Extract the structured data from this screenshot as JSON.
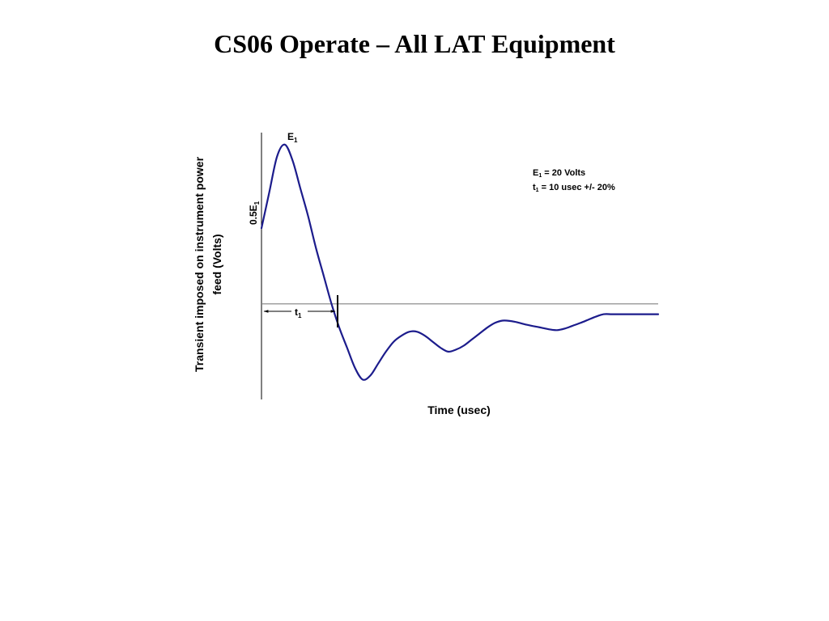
{
  "slide": {
    "title": "CS06 Operate – All LAT Equipment"
  },
  "chart_data": {
    "type": "line",
    "title": "",
    "xlabel": "Time (usec)",
    "ylabel_line1": "Transient imposed on instrument power",
    "ylabel_line2": "feed (Volts)",
    "grid": false,
    "axis_x_visible": false,
    "colors": {
      "trace": "#1c1c8c",
      "axis": "#000000",
      "baseline": "#808080"
    },
    "markers": {
      "peak": {
        "main": "E",
        "sub": "1"
      },
      "half_peak": {
        "main": "0.5E",
        "sub": "1"
      },
      "duration": {
        "main": "t",
        "sub": "1"
      }
    },
    "legend": {
      "placement": "top-right",
      "line1": {
        "sym": "E",
        "sub": "1",
        "text": " = 20 Volts"
      },
      "line2": {
        "sym": "t",
        "sub": "1",
        "text": " = 10 usec +/- 20%"
      }
    },
    "xlim": [
      0,
      51
    ],
    "ylim": [
      -2.4,
      4.3
    ],
    "series": [
      {
        "x": [
          0,
          1,
          2,
          3,
          4,
          5,
          6,
          7,
          8,
          9,
          10,
          11,
          12,
          13,
          14,
          15,
          16,
          17,
          18,
          19,
          20,
          21,
          22,
          23,
          24,
          25,
          26,
          27,
          28,
          29,
          30,
          31,
          32,
          33,
          34,
          35,
          36,
          37,
          38,
          39,
          40,
          41,
          42,
          43,
          44,
          45,
          46,
          47,
          48,
          49,
          50,
          51
        ],
        "y": [
          1.9,
          2.8,
          3.7,
          4.0,
          3.6,
          2.9,
          2.2,
          1.4,
          0.7,
          0.0,
          -0.6,
          -1.1,
          -1.6,
          -1.9,
          -1.8,
          -1.5,
          -1.2,
          -0.95,
          -0.8,
          -0.7,
          -0.7,
          -0.8,
          -0.95,
          -1.1,
          -1.2,
          -1.15,
          -1.05,
          -0.9,
          -0.75,
          -0.6,
          -0.48,
          -0.42,
          -0.43,
          -0.47,
          -0.52,
          -0.56,
          -0.6,
          -0.64,
          -0.66,
          -0.62,
          -0.55,
          -0.48,
          -0.4,
          -0.32,
          -0.26,
          -0.26,
          -0.26,
          -0.26,
          -0.26,
          -0.26,
          -0.26,
          -0.26
        ]
      }
    ]
  }
}
